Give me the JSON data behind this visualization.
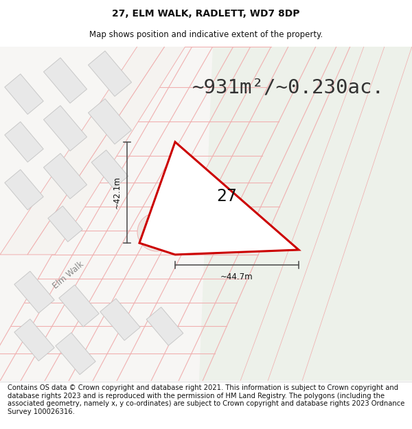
{
  "title": "27, ELM WALK, RADLETT, WD7 8DP",
  "subtitle": "Map shows position and indicative extent of the property.",
  "area_text": "~931m²/~0.230ac.",
  "label_27": "27",
  "dim_height": "~42.1m",
  "dim_width": "~44.7m",
  "street_label": "Elm Walk",
  "footer": "Contains OS data © Crown copyright and database right 2021. This information is subject to Crown copyright and database rights 2023 and is reproduced with the permission of HM Land Registry. The polygons (including the associated geometry, namely x, y co-ordinates) are subject to Crown copyright and database rights 2023 Ordnance Survey 100026316.",
  "bg_color": "#ffffff",
  "map_bg_left": "#f5f5f5",
  "map_bg_right": "#eef1ec",
  "road_fill": "#ffffff",
  "road_outline_color": "#f0b8b8",
  "building_fill": "#e8e8e8",
  "building_outline": "#c8c8c8",
  "property_fill": "#ffffff",
  "property_outline": "#cc0000",
  "dim_line_color": "#555555",
  "title_color": "#111111",
  "footer_color": "#111111",
  "title_fontsize": 10,
  "subtitle_fontsize": 8.5,
  "area_fontsize": 21,
  "label_fontsize": 17,
  "dim_fontsize": 8.5,
  "footer_fontsize": 7.2,
  "street_fontsize": 8.5
}
